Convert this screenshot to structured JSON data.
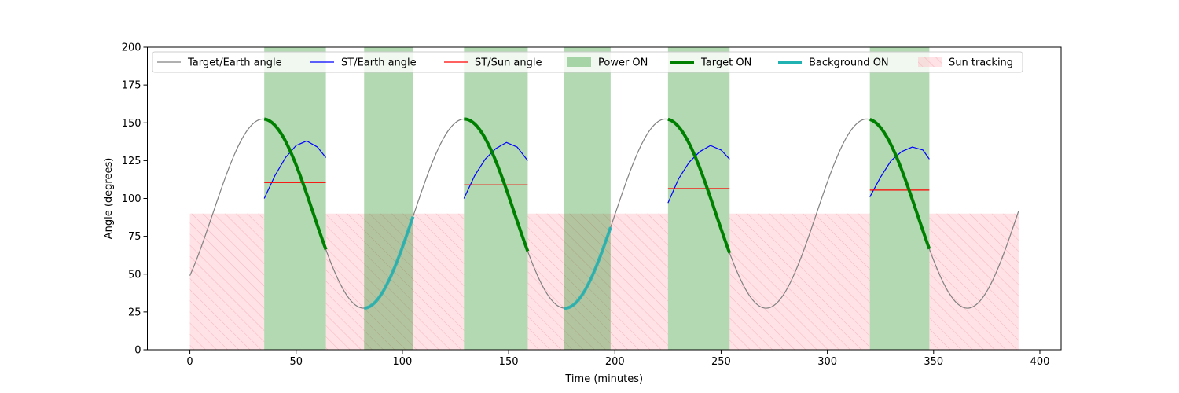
{
  "chart_data": {
    "type": "line",
    "title": "",
    "xlabel": "Time (minutes)",
    "ylabel": "Angle (degrees)",
    "xlim": [
      -20,
      410
    ],
    "ylim": [
      0,
      200
    ],
    "xticks": [
      0,
      50,
      100,
      150,
      200,
      250,
      300,
      350,
      400
    ],
    "yticks": [
      0,
      25,
      50,
      75,
      100,
      125,
      150,
      175,
      200
    ],
    "grid": false,
    "legend_position": "top",
    "legend": [
      {
        "label": "Target/Earth angle",
        "kind": "line",
        "color": "#808080"
      },
      {
        "label": "ST/Earth angle",
        "kind": "line",
        "color": "#0000ff"
      },
      {
        "label": "ST/Sun angle",
        "kind": "line",
        "color": "#ff0000"
      },
      {
        "label": "Power ON",
        "kind": "patch",
        "color": "#008000"
      },
      {
        "label": "Target ON",
        "kind": "thickline",
        "color": "#008000"
      },
      {
        "label": "Background ON",
        "kind": "thickline",
        "color": "#20b2b2"
      },
      {
        "label": "Sun tracking",
        "kind": "hatch",
        "color": "#ffb6c1"
      }
    ],
    "target_earth": {
      "name": "Target/Earth angle",
      "color": "#808080",
      "x_range": [
        0,
        390
      ],
      "period": 94.7,
      "mean": 90,
      "amplitude": 62.5,
      "value_at_0": 49,
      "minimum": 27.5,
      "maximum": 152.5
    },
    "sun_tracking": {
      "color": "#ffb6c1",
      "level": 90,
      "intervals": [
        [
          0,
          35
        ],
        [
          64,
          129
        ],
        [
          159,
          225
        ],
        [
          254,
          320
        ],
        [
          348,
          390
        ]
      ]
    },
    "power_on": {
      "color": "#008000",
      "level": 200,
      "intervals": [
        [
          35,
          64
        ],
        [
          82,
          105
        ],
        [
          129,
          159
        ],
        [
          176,
          198
        ],
        [
          225,
          254
        ],
        [
          320,
          348
        ]
      ]
    },
    "target_on": {
      "color": "#008000",
      "intervals": [
        [
          35,
          64
        ],
        [
          129,
          159
        ],
        [
          225,
          254
        ],
        [
          320,
          348
        ]
      ]
    },
    "background_on": {
      "color": "#20b2b2",
      "intervals": [
        [
          82,
          105
        ],
        [
          176,
          198
        ]
      ]
    },
    "st_earth": {
      "name": "ST/Earth angle",
      "color": "#0000ff",
      "segments": [
        {
          "x": [
            35,
            40,
            45,
            50,
            55,
            60,
            64
          ],
          "y": [
            100,
            115,
            127,
            135,
            138,
            134,
            127
          ]
        },
        {
          "x": [
            129,
            134,
            139,
            144,
            149,
            154,
            159
          ],
          "y": [
            100,
            115,
            126,
            133,
            137,
            134,
            125
          ]
        },
        {
          "x": [
            225,
            230,
            235,
            240,
            245,
            250,
            254
          ],
          "y": [
            97,
            113,
            124,
            131,
            135,
            132,
            126
          ]
        },
        {
          "x": [
            320,
            325,
            330,
            335,
            340,
            345,
            348
          ],
          "y": [
            101,
            114,
            125,
            131,
            134,
            132,
            126
          ]
        }
      ]
    },
    "st_sun": {
      "name": "ST/Sun angle",
      "color": "#ff0000",
      "segments": [
        {
          "x": [
            35,
            64
          ],
          "y": [
            110.5,
            110.5
          ]
        },
        {
          "x": [
            129,
            159
          ],
          "y": [
            109,
            109
          ]
        },
        {
          "x": [
            225,
            254
          ],
          "y": [
            106.5,
            106.5
          ]
        },
        {
          "x": [
            320,
            348
          ],
          "y": [
            105.5,
            105.5
          ]
        }
      ]
    }
  }
}
